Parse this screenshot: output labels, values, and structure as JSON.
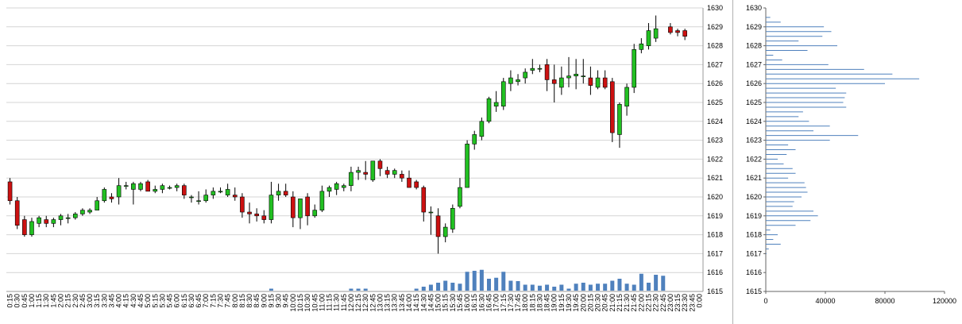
{
  "colors": {
    "up": "#22c022",
    "down": "#cc1111",
    "wick": "#000000",
    "volume": "#4f81bd",
    "profile": "#4f81bd",
    "grid": "#d4d4d4"
  },
  "chart_data": [
    {
      "type": "candlestick",
      "title": "",
      "ylim": [
        1615,
        1630
      ],
      "y_ticks": [
        "1615",
        "1616",
        "1617",
        "1618",
        "1619",
        "1620",
        "1621",
        "1622",
        "1623",
        "1624",
        "1625",
        "1626",
        "1627",
        "1628",
        "1629",
        "1630"
      ],
      "x_labels": [
        "0:15",
        "0:30",
        "0:45",
        "1:00",
        "1:15",
        "1:30",
        "1:45",
        "2:00",
        "2:15",
        "2:30",
        "2:45",
        "3:00",
        "3:15",
        "3:30",
        "3:45",
        "4:00",
        "4:15",
        "4:30",
        "4:45",
        "5:00",
        "5:15",
        "5:30",
        "5:45",
        "6:00",
        "6:15",
        "6:30",
        "6:45",
        "7:00",
        "7:15",
        "7:30",
        "7:45",
        "8:00",
        "8:15",
        "8:30",
        "8:45",
        "9:00",
        "9:15",
        "9:30",
        "9:45",
        "10:00",
        "10:15",
        "10:30",
        "10:45",
        "11:00",
        "11:15",
        "11:30",
        "11:45",
        "12:00",
        "12:15",
        "12:30",
        "12:45",
        "13:00",
        "13:15",
        "13:30",
        "13:45",
        "14:00",
        "14:15",
        "14:30",
        "14:45",
        "15:00",
        "15:15",
        "15:30",
        "15:45",
        "16:00",
        "16:15",
        "16:30",
        "16:45",
        "17:00",
        "17:15",
        "17:30",
        "17:45",
        "18:00",
        "18:15",
        "18:30",
        "18:45",
        "19:00",
        "19:15",
        "19:30",
        "19:45",
        "20:00",
        "20:15",
        "20:30",
        "20:45",
        "21:00",
        "21:15",
        "21:30",
        "21:45",
        "22:00",
        "22:15",
        "22:30",
        "22:45",
        "23:00",
        "23:15",
        "23:30",
        "23:45",
        "0:00"
      ],
      "candles": [
        [
          1620.8,
          1621.0,
          1619.6,
          1619.8
        ],
        [
          1619.8,
          1620.0,
          1618.3,
          1618.5
        ],
        [
          1618.8,
          1619.0,
          1617.9,
          1618.0
        ],
        [
          1618.0,
          1618.9,
          1617.9,
          1618.7
        ],
        [
          1618.6,
          1619.0,
          1618.4,
          1618.9
        ],
        [
          1618.8,
          1619.0,
          1618.4,
          1618.6
        ],
        [
          1618.6,
          1618.9,
          1618.4,
          1618.8
        ],
        [
          1618.8,
          1619.1,
          1618.5,
          1619.0
        ],
        [
          1618.9,
          1619.1,
          1618.6,
          1618.9
        ],
        [
          1618.9,
          1619.2,
          1618.8,
          1619.1
        ],
        [
          1619.1,
          1619.4,
          1619.0,
          1619.3
        ],
        [
          1619.2,
          1619.4,
          1619.1,
          1619.3
        ],
        [
          1619.3,
          1620.0,
          1619.3,
          1619.8
        ],
        [
          1619.8,
          1620.5,
          1619.7,
          1620.4
        ],
        [
          1620.0,
          1620.2,
          1619.7,
          1619.9
        ],
        [
          1620.0,
          1621.0,
          1619.6,
          1620.6
        ],
        [
          1620.6,
          1620.8,
          1620.4,
          1620.6
        ],
        [
          1620.4,
          1620.8,
          1619.6,
          1620.7
        ],
        [
          1620.4,
          1620.8,
          1620.3,
          1620.7
        ],
        [
          1620.8,
          1620.9,
          1620.3,
          1620.3
        ],
        [
          1620.3,
          1620.6,
          1620.2,
          1620.4
        ],
        [
          1620.4,
          1620.7,
          1620.2,
          1620.6
        ],
        [
          1620.5,
          1620.6,
          1620.4,
          1620.5
        ],
        [
          1620.5,
          1620.7,
          1620.3,
          1620.6
        ],
        [
          1620.6,
          1620.7,
          1619.9,
          1620.1
        ],
        [
          1620.0,
          1620.1,
          1619.7,
          1620.0
        ],
        [
          1619.8,
          1620.3,
          1619.6,
          1619.8
        ],
        [
          1619.8,
          1620.4,
          1619.7,
          1620.1
        ],
        [
          1620.1,
          1620.5,
          1619.9,
          1620.3
        ],
        [
          1620.3,
          1620.5,
          1620.2,
          1620.3
        ],
        [
          1620.1,
          1620.7,
          1620.0,
          1620.4
        ],
        [
          1620.1,
          1620.5,
          1619.8,
          1620.0
        ],
        [
          1620.0,
          1620.2,
          1618.9,
          1619.2
        ],
        [
          1619.2,
          1619.7,
          1618.6,
          1619.1
        ],
        [
          1619.1,
          1619.4,
          1618.7,
          1619.0
        ],
        [
          1619.0,
          1619.3,
          1618.6,
          1618.8
        ],
        [
          1618.8,
          1620.8,
          1618.6,
          1620.1
        ],
        [
          1620.1,
          1620.7,
          1619.8,
          1620.3
        ],
        [
          1620.3,
          1620.7,
          1620.0,
          1620.1
        ],
        [
          1620.0,
          1620.3,
          1618.4,
          1618.9
        ],
        [
          1618.9,
          1619.8,
          1618.3,
          1619.9
        ],
        [
          1620.0,
          1620.2,
          1618.5,
          1619.0
        ],
        [
          1619.0,
          1619.6,
          1618.9,
          1619.3
        ],
        [
          1619.3,
          1620.6,
          1619.2,
          1620.3
        ],
        [
          1620.3,
          1620.6,
          1620.0,
          1620.5
        ],
        [
          1620.4,
          1620.8,
          1620.1,
          1620.7
        ],
        [
          1620.5,
          1620.7,
          1620.3,
          1620.6
        ],
        [
          1620.6,
          1621.6,
          1620.3,
          1621.3
        ],
        [
          1621.3,
          1621.6,
          1620.9,
          1621.4
        ],
        [
          1621.3,
          1621.9,
          1620.9,
          1621.2
        ],
        [
          1620.9,
          1621.9,
          1620.8,
          1621.9
        ],
        [
          1621.9,
          1622.0,
          1621.1,
          1621.5
        ],
        [
          1621.4,
          1621.6,
          1621.0,
          1621.2
        ],
        [
          1621.2,
          1621.5,
          1621.0,
          1621.4
        ],
        [
          1621.2,
          1621.4,
          1620.8,
          1621.0
        ],
        [
          1621.0,
          1621.4,
          1620.5,
          1620.5
        ],
        [
          1620.8,
          1620.9,
          1620.4,
          1620.5
        ],
        [
          1620.5,
          1620.6,
          1618.7,
          1619.2
        ],
        [
          1619.2,
          1619.5,
          1618.0,
          1619.2
        ],
        [
          1619.0,
          1619.4,
          1617.0,
          1617.9
        ],
        [
          1617.9,
          1618.6,
          1617.6,
          1618.4
        ],
        [
          1618.3,
          1619.6,
          1618.1,
          1619.4
        ],
        [
          1619.5,
          1621.0,
          1619.4,
          1620.5
        ],
        [
          1620.5,
          1623.0,
          1620.5,
          1622.8
        ],
        [
          1622.8,
          1623.5,
          1622.5,
          1623.3
        ],
        [
          1623.2,
          1624.2,
          1623.0,
          1624.0
        ],
        [
          1624.0,
          1625.3,
          1623.9,
          1625.2
        ],
        [
          1624.8,
          1625.6,
          1624.5,
          1625.0
        ],
        [
          1624.8,
          1626.3,
          1624.6,
          1626.1
        ],
        [
          1626.0,
          1626.7,
          1625.6,
          1626.3
        ],
        [
          1626.1,
          1626.5,
          1625.9,
          1626.2
        ],
        [
          1626.3,
          1626.8,
          1626.0,
          1626.6
        ],
        [
          1626.7,
          1627.3,
          1626.5,
          1626.8
        ],
        [
          1626.8,
          1627.0,
          1626.6,
          1626.8
        ],
        [
          1627.0,
          1627.3,
          1625.6,
          1626.2
        ],
        [
          1626.2,
          1627.0,
          1625.0,
          1626.0
        ],
        [
          1625.8,
          1626.9,
          1625.4,
          1626.3
        ],
        [
          1626.3,
          1627.4,
          1625.8,
          1626.4
        ],
        [
          1626.4,
          1627.3,
          1625.7,
          1626.5
        ],
        [
          1626.4,
          1627.3,
          1626.0,
          1626.4
        ],
        [
          1626.3,
          1626.9,
          1625.4,
          1625.9
        ],
        [
          1625.8,
          1626.7,
          1625.7,
          1626.3
        ],
        [
          1626.3,
          1626.7,
          1625.7,
          1625.8
        ],
        [
          1626.1,
          1626.3,
          1622.9,
          1623.4
        ],
        [
          1623.3,
          1625.0,
          1622.6,
          1624.9
        ],
        [
          1624.8,
          1626.0,
          1624.3,
          1625.8
        ],
        [
          1625.8,
          1628.1,
          1625.5,
          1627.8
        ],
        [
          1627.8,
          1628.4,
          1627.6,
          1628.1
        ],
        [
          1628.0,
          1629.2,
          1627.8,
          1628.8
        ],
        [
          1628.4,
          1629.6,
          1628.2,
          1628.9
        ],
        null,
        [
          1629.0,
          1629.2,
          1628.6,
          1628.7
        ],
        [
          1628.8,
          1628.9,
          1628.5,
          1628.7
        ],
        [
          1628.8,
          1628.9,
          1628.3,
          1628.5
        ],
        null,
        null
      ],
      "volume": [
        0,
        0,
        0,
        0,
        0,
        0,
        0,
        0,
        0,
        0,
        0,
        0,
        0,
        0,
        0,
        0,
        0,
        0,
        0,
        0,
        0,
        0,
        0,
        0,
        0,
        0,
        0,
        0,
        0,
        0,
        0,
        0,
        0,
        0,
        0,
        0,
        0.1,
        0,
        0,
        0,
        0,
        0,
        0,
        0,
        0,
        0,
        0,
        0.1,
        0.1,
        0.1,
        0,
        0,
        0,
        0,
        0,
        0,
        0.1,
        0.2,
        0.3,
        0.4,
        0.5,
        0.4,
        0.35,
        0.95,
        1.0,
        1.05,
        0.6,
        0.65,
        0.95,
        0.5,
        0.48,
        0.3,
        0.3,
        0.25,
        0.3,
        0.2,
        0.3,
        0.1,
        0.35,
        0.4,
        0.3,
        0.35,
        0.35,
        0.5,
        0.6,
        0.35,
        0.3,
        0.85,
        0.4,
        0.8,
        0.75,
        0,
        0,
        0,
        0,
        0
      ]
    },
    {
      "type": "bar",
      "orientation": "horizontal",
      "title": "",
      "xlim": [
        0,
        120000
      ],
      "x_ticks": [
        "0",
        "40000",
        "80000",
        "120000"
      ],
      "ylim": [
        1615,
        1630
      ],
      "y_ticks": [
        "1615",
        "1616",
        "1617",
        "1618",
        "1619",
        "1620",
        "1621",
        "1622",
        "1623",
        "1624",
        "1625",
        "1626",
        "1627",
        "1628",
        "1629",
        "1630"
      ],
      "levels": [
        1617.0,
        1617.25,
        1617.5,
        1617.75,
        1618.0,
        1618.25,
        1618.5,
        1618.75,
        1619.0,
        1619.25,
        1619.5,
        1619.75,
        1620.0,
        1620.25,
        1620.5,
        1620.75,
        1621.0,
        1621.25,
        1621.5,
        1621.75,
        1622.0,
        1622.25,
        1622.5,
        1622.75,
        1623.0,
        1623.25,
        1623.5,
        1623.75,
        1624.0,
        1624.25,
        1624.5,
        1624.75,
        1625.0,
        1625.25,
        1625.5,
        1625.75,
        1626.0,
        1626.25,
        1626.5,
        1626.75,
        1627.0,
        1627.25,
        1627.5,
        1627.75,
        1628.0,
        1628.25,
        1628.5,
        1628.75,
        1629.0,
        1629.25,
        1629.5
      ],
      "values": [
        500,
        2000,
        10000,
        5000,
        8000,
        3000,
        20000,
        30000,
        35000,
        32000,
        18000,
        19000,
        24000,
        28000,
        27000,
        26000,
        15000,
        20000,
        18000,
        12000,
        8000,
        14000,
        20000,
        15000,
        43000,
        62000,
        32000,
        43000,
        29000,
        22000,
        25000,
        54000,
        52000,
        53000,
        54000,
        47000,
        80000,
        103000,
        85000,
        66000,
        42000,
        11000,
        5000,
        28000,
        48000,
        22000,
        38000,
        44000,
        39000,
        10000,
        3000
      ]
    }
  ]
}
